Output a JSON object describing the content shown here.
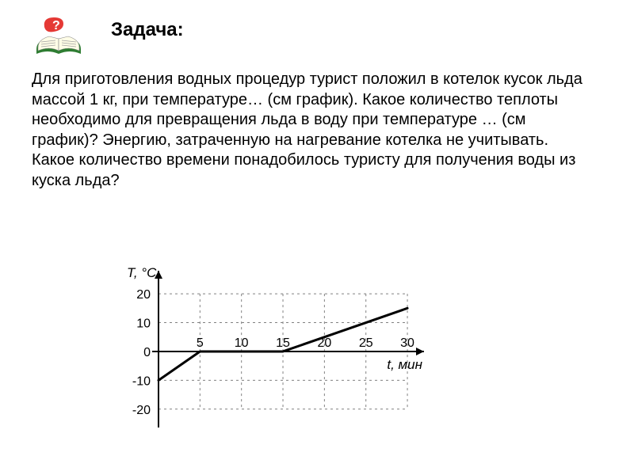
{
  "title": "Задача:",
  "body": "Для приготовления водных процедур турист положил в котелок кусок льда массой 1 кг, при температуре… (см график). Какое количество теплоты необходимо для превращения льда в воду при температуре …  (см график)? Энергию, затраченную на нагревание котелка не учитывать. Какое количество времени понадобилось туристу для получения воды из куска льда?",
  "chart": {
    "type": "line",
    "y_axis_label": "T, °C",
    "x_axis_label": "t, мин",
    "x_ticks": [
      5,
      10,
      15,
      20,
      25,
      30
    ],
    "y_ticks": [
      -20,
      -10,
      0,
      10,
      20
    ],
    "series": {
      "points": [
        {
          "t": 0,
          "T": -10
        },
        {
          "t": 5,
          "T": 0
        },
        {
          "t": 15,
          "T": 0
        },
        {
          "t": 30,
          "T": 15
        }
      ],
      "color": "#000000",
      "line_width": 3
    },
    "axis_color": "#000000",
    "axis_width": 2,
    "grid_color": "#808080",
    "grid_dash": "3,4",
    "tick_font_size": 16,
    "label_font_size": 17,
    "label_font_style": "italic",
    "background": "#ffffff",
    "xlim": [
      0,
      32
    ],
    "ylim": [
      -25,
      28
    ]
  },
  "icon": {
    "book_cover": "#2e7d32",
    "book_pages": "#fffde7",
    "page_lines": "#a0a0a0",
    "q_fill": "#e53935",
    "q_text": "#ffffff"
  }
}
